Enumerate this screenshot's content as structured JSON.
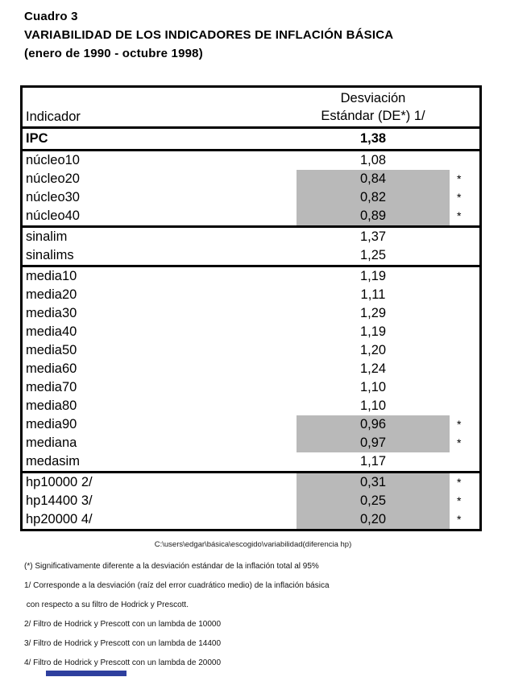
{
  "heading": {
    "line1": "Cuadro 3",
    "line2": "VARIABILIDAD DE LOS INDICADORES DE INFLACIÓN BÁSICA",
    "line3": "(enero de 1990 - octubre 1998)"
  },
  "table": {
    "col1_header": "Indicador",
    "col2_header_line1": "Desviación",
    "col2_header_line2": "Estándar (DE*) 1/",
    "highlight_color": "#b9b9b9",
    "groups": [
      {
        "rows": [
          {
            "indicator": "IPC",
            "value": "1,38",
            "star": "",
            "highlight": false,
            "bold": true
          }
        ]
      },
      {
        "rows": [
          {
            "indicator": "núcleo10",
            "value": "1,08",
            "star": "",
            "highlight": false,
            "bold": false
          },
          {
            "indicator": "núcleo20",
            "value": "0,84",
            "star": "*",
            "highlight": true,
            "bold": false
          },
          {
            "indicator": "núcleo30",
            "value": "0,82",
            "star": "*",
            "highlight": true,
            "bold": false
          },
          {
            "indicator": "núcleo40",
            "value": "0,89",
            "star": "*",
            "highlight": true,
            "bold": false
          }
        ]
      },
      {
        "rows": [
          {
            "indicator": "sinalim",
            "value": "1,37",
            "star": "",
            "highlight": false,
            "bold": false
          },
          {
            "indicator": "sinalims",
            "value": "1,25",
            "star": "",
            "highlight": false,
            "bold": false
          }
        ]
      },
      {
        "rows": [
          {
            "indicator": "media10",
            "value": "1,19",
            "star": "",
            "highlight": false,
            "bold": false
          },
          {
            "indicator": "media20",
            "value": "1,11",
            "star": "",
            "highlight": false,
            "bold": false
          },
          {
            "indicator": "media30",
            "value": "1,29",
            "star": "",
            "highlight": false,
            "bold": false
          },
          {
            "indicator": "media40",
            "value": "1,19",
            "star": "",
            "highlight": false,
            "bold": false
          },
          {
            "indicator": "media50",
            "value": "1,20",
            "star": "",
            "highlight": false,
            "bold": false
          },
          {
            "indicator": "media60",
            "value": "1,24",
            "star": "",
            "highlight": false,
            "bold": false
          },
          {
            "indicator": "media70",
            "value": "1,10",
            "star": "",
            "highlight": false,
            "bold": false
          },
          {
            "indicator": "media80",
            "value": "1,10",
            "star": "",
            "highlight": false,
            "bold": false
          },
          {
            "indicator": "media90",
            "value": "0,96",
            "star": "*",
            "highlight": true,
            "bold": false
          },
          {
            "indicator": "mediana",
            "value": "0,97",
            "star": "*",
            "highlight": true,
            "bold": false
          },
          {
            "indicator": "medasim",
            "value": "1,17",
            "star": "",
            "highlight": false,
            "bold": false
          }
        ]
      },
      {
        "rows": [
          {
            "indicator": "hp10000 2/",
            "value": "0,31",
            "star": "*",
            "highlight": true,
            "bold": false
          },
          {
            "indicator": "hp14400 3/",
            "value": "0,25",
            "star": "*",
            "highlight": true,
            "bold": false
          },
          {
            "indicator": "hp20000 4/",
            "value": "0,20",
            "star": "*",
            "highlight": true,
            "bold": false
          }
        ]
      }
    ]
  },
  "footer": {
    "path": "C:\\users\\edgar\\básica\\escogido\\variabilidad(diferencia hp)",
    "notes": [
      "(*) Significativamente diferente a la desviación estándar de la inflación total al 95%",
      "1/ Corresponde a la desviación (raíz del error cuadrático medio) de la inflación básica",
      " con respecto a su filtro de Hodrick y Prescott.",
      "2/ Filtro de Hodrick y Prescott con un lambda de 10000",
      "3/ Filtro de Hodrick y Prescott con un lambda de 14400",
      "4/ Filtro de Hodrick y Prescott con un lambda de 20000"
    ]
  }
}
